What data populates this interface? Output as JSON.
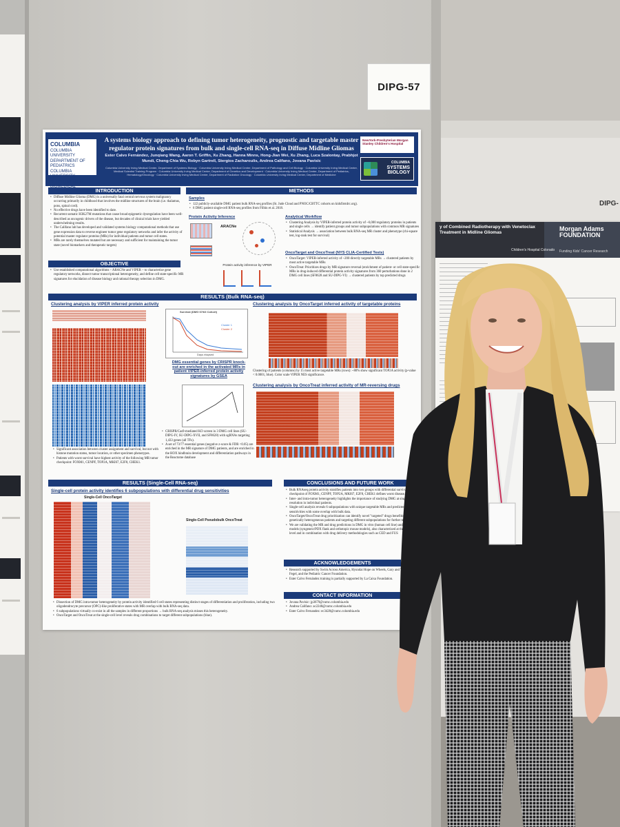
{
  "scene": {
    "label_card": "DIPG-57",
    "right_label_partial": "DIPG-"
  },
  "poster": {
    "title": "A systems biology approach to defining tumor heterogeneity, prognostic and targetable master regulator protein signatures from bulk and single-cell RNA-seq in Diffuse Midline Gliomas",
    "authors": "Ester Calvo Fernández, Junqiang Wang, Aaron T. Griffin, Xu Zhang, Hanna Minns, Hong-Jian Wei, Xu Zhang, Luca Szalontay, Prabhjot Mundi, Cheng-Chia Wu, Robyn Gartrell, Stergios Zacharoulis, Andrea Califano, Jovana Pavisic",
    "affiliations": [
      "Columbia University Irving Medical Center, Department of Systems Biology",
      "Columbia University Irving Medical Center, Department of Pathology and Cell Biology",
      "Columbia University Irving Medical Center, Medical Scientist Training Program",
      "Columbia University Irving Medical Center, Department of Genetics and Development",
      "Columbia University Irving Medical Center, Department of Pediatrics, Hematology/Oncology",
      "Columbia University Irving Medical Center, Department of Radiation Oncology",
      "Columbia University Irving Medical Center, Department of Medicine"
    ],
    "logo_left": {
      "name": "COLUMBIA",
      "lines": [
        "COLUMBIA UNIVERSITY DEPARTMENT OF PEDIATRICS",
        "COLUMBIA UNIVERSITY DEPARTMENT OF BIOMEDICAL INFORMATICS"
      ]
    },
    "logo_nyp": "NewYork-Presbyterian Morgan Stanley Children's Hospital",
    "logo_sb": [
      "COLUMBIA",
      "SYSTEMS",
      "BIOLOGY"
    ],
    "sections": {
      "introduction": "INTRODUCTION",
      "methods": "METHODS",
      "objective": "OBJECTIVE",
      "results_bulk": "RESULTS (Bulk RNA-seq)",
      "results_sc": "RESULTS (Single-Cell RNA-seq)",
      "conclusions": "CONCLUSIONS AND FUTURE WORK",
      "acknowledgements": "ACKNOWLEDGEMENTS",
      "contact": "CONTACT INFORMATION"
    },
    "intro_bullets": [
      "Diffuse Midline Glioma (DMG) is a universally fatal central nervous system malignancy occurring primarily in childhood that involves the midline structures of the brain (i.e. thalamus, pons, spinal cord).",
      "No effective drugs have been identified to date.",
      "Recurrent somatic H3K27M mutations that cause broad epigenetic dysregulation have been well-described as oncogenic drivers of the disease, but decades of clinical trials have yielded underwhelming results.",
      "The Califano lab has developed and validated systems biology computational methods that use gene expression data to reverse engineer tumor gene regulatory networks and infer the activity of potential master regulator proteins (MRs) for individual patients and tumor cell states.",
      "MRs are rarely themselves mutated but are necessary and sufficient for maintaining the tumor state (novel biomarkers and therapeutic targets)"
    ],
    "objective_bullets": [
      "Use established computational algorithms – ARACNe and VIPER – to characterize gene regulatory networks, dissect tumor transcriptional heterogeneity, and define cell state-specific MR signatures for elucidation of disease biology and rational therapy selection in DMG."
    ],
    "methods": {
      "samples_h": "Samples",
      "samples": [
        "122 publicly-available DMG patient bulk RNA-seq profiles (St. Jude Cloud and PNOC/CBTTC cohorts on kidsfirstdrc.org).",
        "6 DMG patient single-cell RNA-seq profiles from Filbin et al. 2018."
      ],
      "pai_h": "Protein Activity Inference",
      "aracne": "ARACNe",
      "viper": "Protein activity inference by VIPER",
      "workflow_h": "Analytical Workflow",
      "workflow": [
        "Clustering Analysis by VIPER-inferred protein activity of ~6,000 regulatory proteins in patients and single cells → identify patient groups and tumor subpopulations with common MR signatures",
        "Statistical Analysis → association between bulk RNA-seq MR cluster and phenotype (chi-square test, log-rank test for survival)"
      ],
      "onco_h": "OncoTarget and OncoTreat (NYS CLIA-Certified Tests)",
      "onco": [
        "OncoTarget: VIPER-inferred activity of ~200 directly targetable MRs → clustered patients by most active targetable MRs",
        "OncoTreat: Prioritizes drugs by MR signature reversal (enrichment of patient- or cell state-specific MRs in drug-induced differential protein activity signatures from 360 perturbations done in 2 DMG cell lines (SF8628 and SU-DIPG-VI) → clustered patients by top predicted drugs"
      ]
    },
    "figures": {
      "viper_cluster": "Clustering analysis by VIPER inferred protein activity",
      "oncotarget_cluster": "Clustering analysis by OncoTarget inferred activity of targetable proteins",
      "oncotreat_cluster": "Clustering analysis by OncoTreat inferred activity of MR-reversing drugs",
      "crispr_caption": "DMG essential genes by CRISPR knock-out are enriched in the activated MRs in patient VIPER-inferred protein activity signatures by GSEA",
      "sc_h": "Single-cell protein activity identifies 6 subpopulations with differential drug sensitivities",
      "sc_oncotarget": "Single-Cell OncoTarget",
      "sc_pseudobulk": "Single-Cell Pseudobulk OncoTreat",
      "survival_title": "Survival (DMG 67/63 Cohort)",
      "survival_x": "Days elapsed",
      "survival_y": "Probability of Survival",
      "legend": [
        "Cluster 1",
        "Cluster 2"
      ]
    },
    "results_text": {
      "oncotarget_note": "Clustering of patients (columns) by 15 most active targetable MRs (rows): ~80% show significant TOP2A activity (p-value < 0.0001, blue). Color scale VIPER NES significance.",
      "left_bullets": [
        "Significant association between cluster assignment and survival, but not with histone mutation status, tumor location, or other specimen phenotypes.",
        "Patients with worst survival have highest activity of the following MR tumor checkpoint: FOXM1, CENPF, TOP2A, MKI67, E2F8, CHEK1."
      ],
      "crispr_bullets": [
        "CRISPR/Cas9-mediated KO screen in 3 DMG cell lines (SU-DIPG-IV, SU-DIPG-XVII, and SF8628) with sgRNAs targeting 1,433 genes (all TFs).",
        "A set of 73/77 essential genes (negative z-score & FDR <0.05) are enriched in the MR signature of DMG patients, and are enriched in the HOX hindbrain development and differentiation pathways in the Reactome database"
      ],
      "sc_bullets": [
        "Dissection of DMG intra-tumor heterogeneity by protein activity identified 6 cell states representing distinct stages of differentiation and proliferation, including two oligodendrocyte precursor (OPC)-like proliferative states with MR overlap with bulk RNA-seq data.",
        "6 subpopulations virtually co-exist in all the samples in different proportions → bulk RNA-seq analysis misses this heterogeneity.",
        "OncoTarget and OncoTreat at the single-cell level reveals drug combinations to target different subpopulations (blue)."
      ]
    },
    "conclusions": [
      "Bulk RNAseq protein activity stratifies patients into two groups with differential survival: tumor checkpoint of FOXM1, CENPF, TOP2A, MKI67, E2F8, CHEK1 defines worst disease.",
      "Inter- and intra-tumor heterogeneity highlights the importance of studying DMG at single-cell resolution in individual patients.",
      "Single-cell analysis reveals 6 subpopulations with unique targetable MRs and predicted drug sensitivities with some overlap with bulk data.",
      "OncoTarget/OncoTreat drug prioritization can identify novel \"targeted\" drugs benefiting genetically heterogeneous patients and targeting different subpopulations for further testing.",
      "We are validating the MR and drug predictions in DMG in vitro (human cell line) and in vivo models (syngeneic/PDX flank and orthotopic mouse models), also characterized at the single-cell level and in combination with drug delivery methodologies such as CED and FUS"
    ],
    "acknowledgements": [
      "Research supported by Swim Across America, Hyundai Hope on Wheels, Gary and Yael Fegel, and the Pediatric Cancer Foundation.",
      "Ester Calvo Fernández training is partially supported by La Caixa Foundation."
    ],
    "contact": [
      "Jovana Pavisic: jp3679@cumc.columbia.edu",
      "Andrea Califano: ac2248@cumc.columbia.edu",
      "Ester Calvo Fernandez: ec3428@cumc.columbia.edu"
    ]
  },
  "right_poster": {
    "title_partial": "y of Combined Radiotherapy with Venetoclax Treatment in Midline Gliomas",
    "sponsor": "Morgan Adams FOUNDATION",
    "sponsor_sub": "Funding Kids' Cancer Research",
    "hospital": "Children's Hospital Colorado"
  },
  "colors": {
    "poster_blue": "#1b3a79",
    "heatmap_red": "#c63a22",
    "heatmap_blue": "#2c6cb5"
  }
}
